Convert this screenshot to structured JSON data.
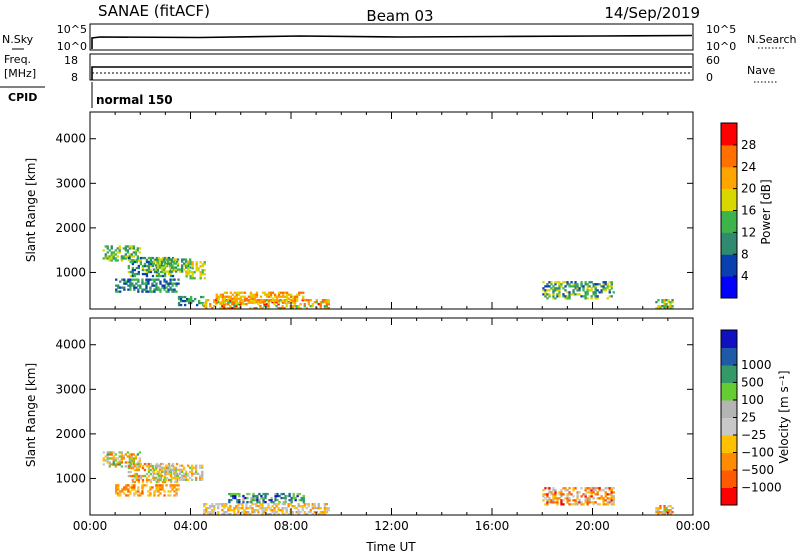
{
  "header": {
    "site": "SANAE (fitACF)",
    "beam": "Beam 03",
    "date": "14/Sep/2019"
  },
  "top_panels": {
    "nsky_label": "N.Sky",
    "nsearch_label": "N.Search",
    "nsky_ticks": [
      "10^5",
      "10^0"
    ],
    "nsearch_ticks": [
      "10^5",
      "10^0"
    ],
    "freq_label_1": "Freq.",
    "freq_label_2": "[MHz]",
    "freq_ticks": [
      "18",
      "8"
    ],
    "nave_label": "Nave",
    "nave_ticks": [
      "60",
      "0"
    ],
    "cpid_label": "CPID",
    "cpid_value": "normal 150"
  },
  "colors": {
    "power": [
      "#0000ff",
      "#0a3fb0",
      "#2f8a70",
      "#3cb44b",
      "#d8d800",
      "#ffa500",
      "#ff7000",
      "#ff0000"
    ],
    "velocity": [
      "#ff0000",
      "#ff5a00",
      "#ff8c00",
      "#ffc000",
      "#c8c8c8",
      "#b4b4b4",
      "#66cc33",
      "#339966",
      "#1f5aa6",
      "#1010c0"
    ]
  },
  "chart_data": [
    {
      "type": "heatmap",
      "name": "power",
      "xlabel": "",
      "ylabel": "Slant Range [km]",
      "xlim": [
        0,
        24
      ],
      "ylim": [
        180,
        4600
      ],
      "yticks": [
        "1000",
        "2000",
        "3000",
        "4000"
      ],
      "colorbar_label": "Power [dB]",
      "colorbar_ticks": [
        "4",
        "8",
        "12",
        "16",
        "20",
        "24",
        "28"
      ],
      "colorbar_range": [
        0,
        32
      ],
      "regions": [
        {
          "t": [
            0.5,
            2.0
          ],
          "r": [
            1250,
            1600
          ],
          "v": [
            8,
            20
          ]
        },
        {
          "t": [
            1.5,
            3.5
          ],
          "r": [
            900,
            1350
          ],
          "v": [
            6,
            18
          ]
        },
        {
          "t": [
            2.5,
            4.0
          ],
          "r": [
            1000,
            1300
          ],
          "v": [
            8,
            20
          ]
        },
        {
          "t": [
            3.8,
            4.6
          ],
          "r": [
            850,
            1250
          ],
          "v": [
            12,
            22
          ]
        },
        {
          "t": [
            1.0,
            3.5
          ],
          "r": [
            550,
            850
          ],
          "v": [
            4,
            16
          ]
        },
        {
          "t": [
            3.5,
            4.5
          ],
          "r": [
            250,
            450
          ],
          "v": [
            6,
            16
          ]
        },
        {
          "t": [
            4.5,
            9.5
          ],
          "r": [
            180,
            400
          ],
          "v": [
            14,
            30
          ]
        },
        {
          "t": [
            5.0,
            8.5
          ],
          "r": [
            300,
            550
          ],
          "v": [
            16,
            26
          ]
        },
        {
          "t": [
            18.0,
            20.8
          ],
          "r": [
            400,
            800
          ],
          "v": [
            4,
            20
          ]
        },
        {
          "t": [
            22.5,
            23.2
          ],
          "r": [
            180,
            400
          ],
          "v": [
            10,
            22
          ]
        }
      ]
    },
    {
      "type": "heatmap",
      "name": "velocity",
      "xlabel": "Time UT",
      "ylabel": "Slant Range [km]",
      "xlim": [
        0,
        24
      ],
      "ylim": [
        180,
        4600
      ],
      "xticks": [
        "00:00",
        "04:00",
        "08:00",
        "12:00",
        "16:00",
        "20:00",
        "00:00"
      ],
      "yticks": [
        "1000",
        "2000",
        "3000",
        "4000"
      ],
      "colorbar_label": "Velocity [m s⁻¹]",
      "colorbar_ticks": [
        "-1000",
        "-500",
        "-100",
        "-25",
        "25",
        "100",
        "500",
        "1000"
      ],
      "regions": [
        {
          "t": [
            0.5,
            2.0
          ],
          "r": [
            1250,
            1600
          ],
          "v": [
            1,
            7
          ]
        },
        {
          "t": [
            1.5,
            3.5
          ],
          "r": [
            900,
            1350
          ],
          "v": [
            1,
            6
          ]
        },
        {
          "t": [
            2.5,
            4.5
          ],
          "r": [
            950,
            1300
          ],
          "v": [
            2,
            6
          ]
        },
        {
          "t": [
            1.0,
            3.5
          ],
          "r": [
            600,
            850
          ],
          "v": [
            1,
            4
          ]
        },
        {
          "t": [
            4.5,
            9.5
          ],
          "r": [
            180,
            450
          ],
          "v": [
            2,
            5
          ]
        },
        {
          "t": [
            5.5,
            8.5
          ],
          "r": [
            450,
            650
          ],
          "v": [
            5,
            9
          ]
        },
        {
          "t": [
            18.0,
            20.8
          ],
          "r": [
            400,
            800
          ],
          "v": [
            0,
            5
          ]
        },
        {
          "t": [
            22.5,
            23.2
          ],
          "r": [
            180,
            400
          ],
          "v": [
            1,
            6
          ]
        }
      ]
    }
  ]
}
